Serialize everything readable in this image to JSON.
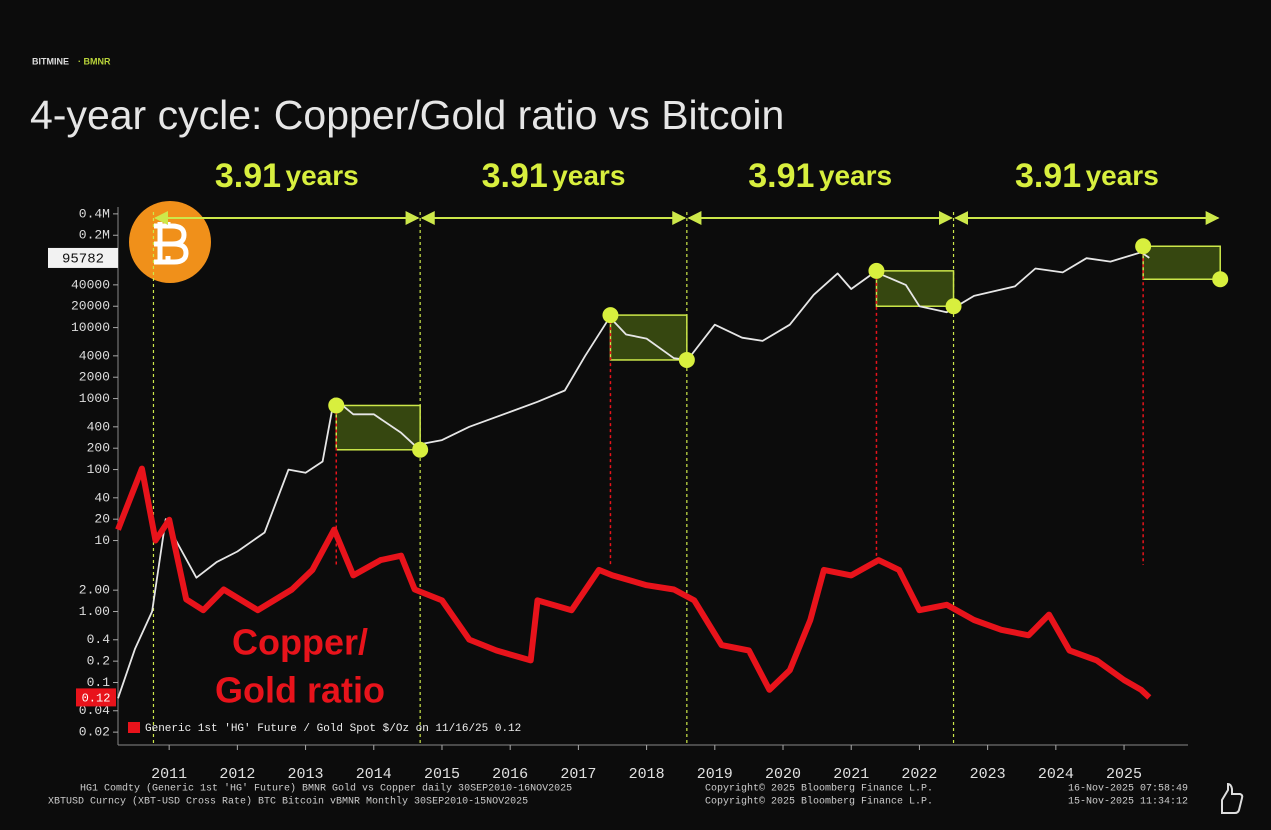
{
  "header": {
    "brand": "BITMINE",
    "ticker": "· BMNR"
  },
  "chart_data": {
    "type": "line",
    "title": "4-year cycle: Copper/Gold ratio vs Bitcoin",
    "log_scale": true,
    "xlim": [
      2010.75,
      2027.2
    ],
    "xticks": [
      {
        "value": 2011.5,
        "label": "2011"
      },
      {
        "value": 2012.5,
        "label": "2012"
      },
      {
        "value": 2013.5,
        "label": "2013"
      },
      {
        "value": 2014.5,
        "label": "2014"
      },
      {
        "value": 2015.5,
        "label": "2015"
      },
      {
        "value": 2016.5,
        "label": "2016"
      },
      {
        "value": 2017.5,
        "label": "2017"
      },
      {
        "value": 2018.5,
        "label": "2018"
      },
      {
        "value": 2019.5,
        "label": "2019"
      },
      {
        "value": 2020.5,
        "label": "2020"
      },
      {
        "value": 2021.5,
        "label": "2021"
      },
      {
        "value": 2022.5,
        "label": "2022"
      },
      {
        "value": 2023.5,
        "label": "2023"
      },
      {
        "value": 2024.5,
        "label": "2024"
      },
      {
        "value": 2025.5,
        "label": "2025"
      }
    ],
    "ylim": [
      0.015,
      500000
    ],
    "yticks": [
      {
        "value": 400000,
        "label": "0.4M"
      },
      {
        "value": 200000,
        "label": "0.2M"
      },
      40000,
      20000,
      10000,
      4000,
      2000,
      1000,
      400,
      200,
      100,
      40,
      20,
      10,
      {
        "value": 2,
        "label": "2.00"
      },
      {
        "value": 1,
        "label": "1.00"
      },
      0.4,
      0.2,
      0.1,
      0.04,
      0.02
    ],
    "y2lim": [
      0.08,
      0.57
    ],
    "y2ticks": [],
    "series": [
      {
        "color": "#e6e6e6",
        "x": [
          2010.75,
          2011.0,
          2011.25,
          2011.45,
          2011.6,
          2011.9,
          2012.2,
          2012.5,
          2012.9,
          2013.25,
          2013.5,
          2013.75,
          2013.92,
          2014.2,
          2014.5,
          2014.9,
          2015.1,
          2015.5,
          2015.9,
          2016.5,
          2016.9,
          2017.3,
          2017.6,
          2017.96,
          2018.2,
          2018.5,
          2018.9,
          2019.1,
          2019.5,
          2019.9,
          2020.2,
          2020.6,
          2020.95,
          2021.3,
          2021.5,
          2021.85,
          2022.3,
          2022.5,
          2022.9,
          2023.3,
          2023.9,
          2024.2,
          2024.6,
          2024.95,
          2025.3,
          2025.75,
          2025.87
        ],
        "values": [
          0.06,
          0.3,
          1,
          20,
          10,
          3,
          5,
          7,
          13,
          100,
          90,
          130,
          1000,
          600,
          600,
          330,
          220,
          260,
          400,
          650,
          900,
          1300,
          4000,
          14000,
          8000,
          7000,
          3700,
          3500,
          11000,
          7200,
          6500,
          11000,
          29000,
          58000,
          35000,
          61000,
          40000,
          20000,
          16500,
          28000,
          38000,
          68000,
          60000,
          95000,
          85000,
          115000,
          95782
        ]
      },
      {
        "name": "Generic 1st 'HG' Future / Gold Spot $/Oz on 11/16/25 0.12",
        "color": "#e8131b",
        "axis": "y2",
        "x": [
          2010.75,
          2011.1,
          2011.3,
          2011.5,
          2011.75,
          2012.0,
          2012.3,
          2012.8,
          2013.3,
          2013.6,
          2013.92,
          2014.2,
          2014.6,
          2014.9,
          2015.1,
          2015.5,
          2015.9,
          2016.3,
          2016.8,
          2016.9,
          2017.4,
          2017.8,
          2018.0,
          2018.5,
          2018.9,
          2019.2,
          2019.6,
          2020.0,
          2020.3,
          2020.6,
          2020.9,
          2021.1,
          2021.5,
          2021.9,
          2022.2,
          2022.5,
          2022.9,
          2023.3,
          2023.7,
          2024.1,
          2024.4,
          2024.7,
          2025.1,
          2025.5,
          2025.75,
          2025.87
        ],
        "values": [
          0.274,
          0.33,
          0.264,
          0.283,
          0.21,
          0.2,
          0.219,
          0.2,
          0.219,
          0.237,
          0.274,
          0.232,
          0.246,
          0.25,
          0.219,
          0.209,
          0.173,
          0.163,
          0.154,
          0.209,
          0.2,
          0.237,
          0.232,
          0.223,
          0.219,
          0.209,
          0.168,
          0.163,
          0.127,
          0.145,
          0.191,
          0.237,
          0.232,
          0.246,
          0.237,
          0.2,
          0.205,
          0.191,
          0.182,
          0.177,
          0.196,
          0.163,
          0.154,
          0.136,
          0.127,
          0.12
        ]
      }
    ],
    "cycle_x": [
      2011.27,
      2015.18,
      2019.09,
      2023.0,
      2026.91
    ],
    "cycle_labels": [
      {
        "value": 3.91,
        "unit": "years"
      },
      {
        "value": 3.91,
        "unit": "years"
      },
      {
        "value": 3.91,
        "unit": "years"
      },
      {
        "value": 3.91,
        "unit": "years"
      }
    ],
    "peaks_x": [
      2013.95,
      2017.97,
      2021.87,
      2025.78
    ],
    "peaks_y": [
      800,
      15000,
      63000,
      140000
    ],
    "troughs_x": [
      2015.18,
      2019.09,
      2023.0,
      2026.91
    ],
    "troughs_y": [
      190,
      3500,
      20000,
      48000
    ],
    "ratio_label": [
      "Copper/",
      "Gold ratio"
    ],
    "footer": [
      [
        "HG1 Comdty (Generic 1st 'HG' Future) BMNR Gold vs Copper daily 30SEP2010-16NOV2025",
        "Copyright© 2025 Bloomberg Finance L.P.",
        "16-Nov-2025 07:58:49"
      ],
      [
        "XBTUSD Curncy (XBT-USD Cross Rate) BTC Bitcoin vBMNR Monthly 30SEP2010-15NOV2025",
        "Copyright© 2025 Bloomberg Finance L.P.",
        "15-Nov-2025 11:34:12"
      ]
    ]
  }
}
